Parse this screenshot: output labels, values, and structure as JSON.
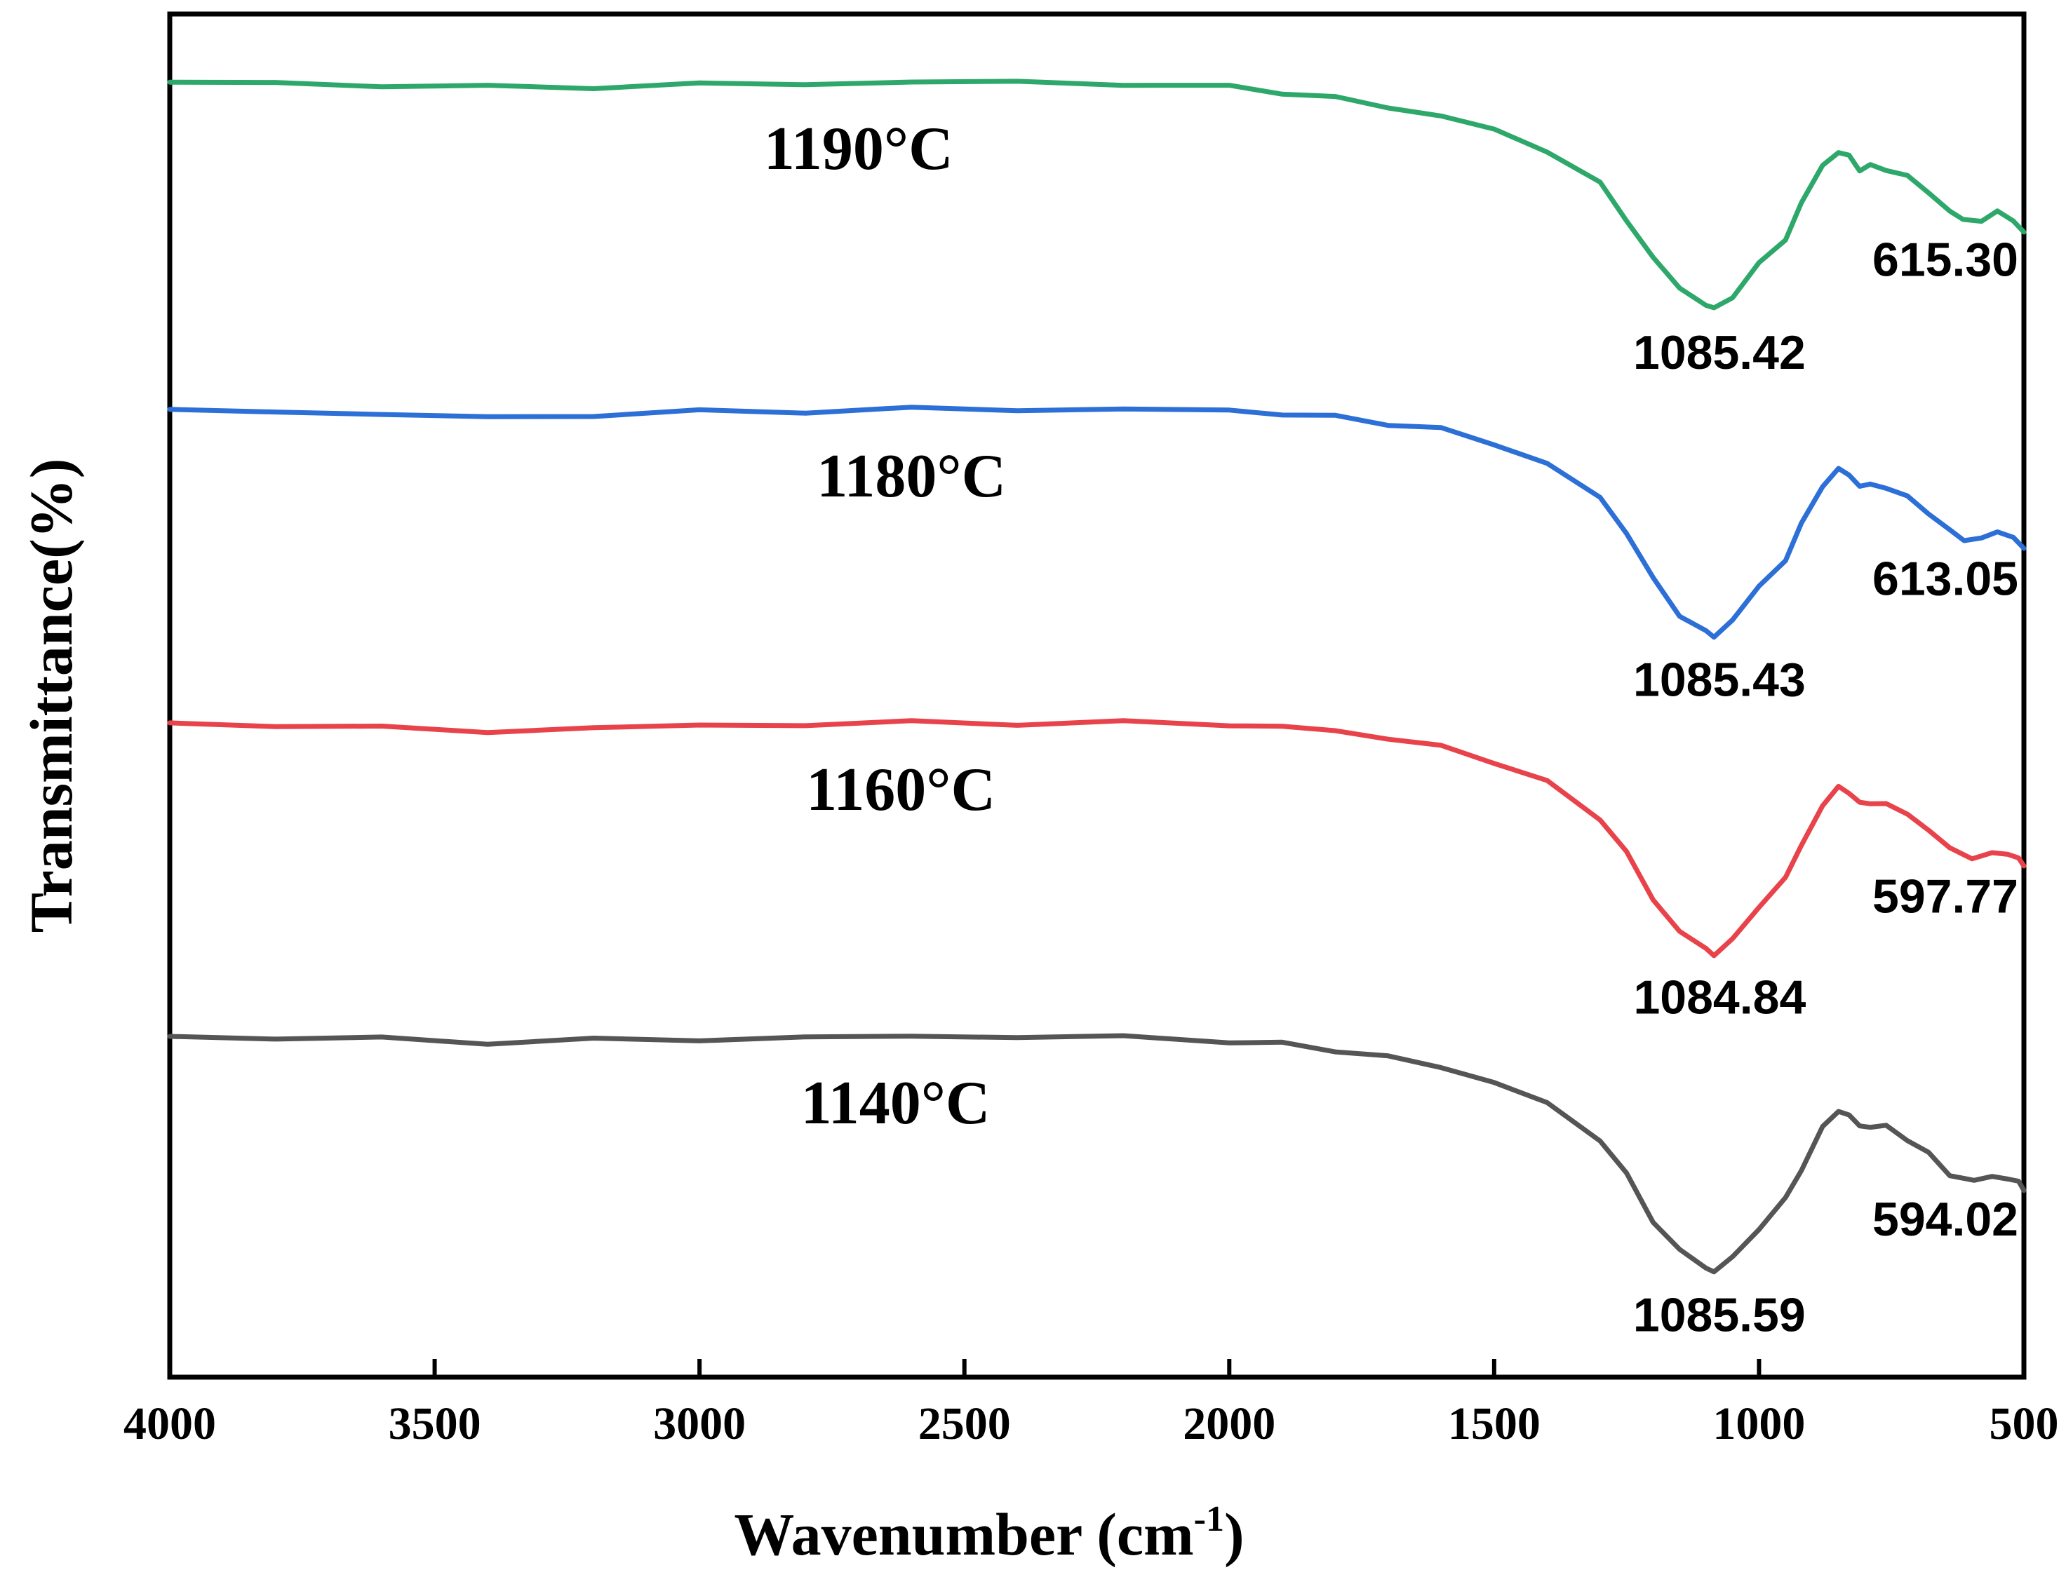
{
  "chart_data": {
    "type": "line",
    "title": "",
    "xlabel": "Wavenumber (cm",
    "xlabel_sup": "-1",
    "xlabel_end": ")",
    "ylabel": "Transmittance(%)",
    "xlim": [
      4000,
      500
    ],
    "x_reversed": true,
    "x_ticks": [
      4000,
      3500,
      3000,
      2500,
      2000,
      1500,
      1000,
      500
    ],
    "y_ticks_shown": false,
    "ylim": [
      0,
      100
    ],
    "series": [
      {
        "name": "1190°C",
        "color": "#2ea86a",
        "label": "1190°C",
        "label_wavenumber": 2700,
        "baseline": 95,
        "peaks": [
          {
            "wavenumber": 1085.42,
            "label": "1085.42"
          },
          {
            "wavenumber": 615.3,
            "label": "615.30"
          }
        ],
        "points": [
          [
            4000,
            95.0
          ],
          [
            3800,
            94.9
          ],
          [
            3600,
            94.8
          ],
          [
            3400,
            94.6
          ],
          [
            3200,
            94.7
          ],
          [
            3000,
            94.8
          ],
          [
            2800,
            94.9
          ],
          [
            2600,
            95.0
          ],
          [
            2400,
            95.0
          ],
          [
            2200,
            94.9
          ],
          [
            2000,
            94.6
          ],
          [
            1900,
            94.3
          ],
          [
            1800,
            93.8
          ],
          [
            1700,
            93.2
          ],
          [
            1600,
            92.5
          ],
          [
            1500,
            91.5
          ],
          [
            1400,
            90.0
          ],
          [
            1300,
            87.5
          ],
          [
            1250,
            85.0
          ],
          [
            1200,
            82.0
          ],
          [
            1150,
            80.0
          ],
          [
            1100,
            78.6
          ],
          [
            1085,
            78.4
          ],
          [
            1050,
            79.3
          ],
          [
            1000,
            81.6
          ],
          [
            950,
            83.6
          ],
          [
            920,
            86.0
          ],
          [
            880,
            89.0
          ],
          [
            850,
            89.8
          ],
          [
            830,
            89.6
          ],
          [
            810,
            88.6
          ],
          [
            790,
            88.8
          ],
          [
            760,
            88.7
          ],
          [
            720,
            88.0
          ],
          [
            680,
            87.0
          ],
          [
            640,
            85.5
          ],
          [
            615,
            84.9
          ],
          [
            580,
            84.9
          ],
          [
            550,
            85.4
          ],
          [
            520,
            85.0
          ],
          [
            500,
            84.0
          ]
        ]
      },
      {
        "name": "1180°C",
        "color": "#2c6fd6",
        "label": "1180°C",
        "label_wavenumber": 2600,
        "baseline": 71,
        "peaks": [
          {
            "wavenumber": 1085.43,
            "label": "1085.43"
          },
          {
            "wavenumber": 613.05,
            "label": "613.05"
          }
        ],
        "points": [
          [
            4000,
            71.0
          ],
          [
            3800,
            70.9
          ],
          [
            3600,
            70.6
          ],
          [
            3400,
            70.4
          ],
          [
            3200,
            70.6
          ],
          [
            3000,
            70.8
          ],
          [
            2800,
            70.9
          ],
          [
            2600,
            71.0
          ],
          [
            2400,
            71.0
          ],
          [
            2200,
            71.0
          ],
          [
            2000,
            70.9
          ],
          [
            1900,
            70.7
          ],
          [
            1800,
            70.4
          ],
          [
            1700,
            70.0
          ],
          [
            1600,
            69.5
          ],
          [
            1500,
            68.5
          ],
          [
            1400,
            67.0
          ],
          [
            1300,
            64.5
          ],
          [
            1250,
            62.0
          ],
          [
            1200,
            58.5
          ],
          [
            1150,
            56.0
          ],
          [
            1100,
            54.6
          ],
          [
            1085,
            54.4
          ],
          [
            1050,
            55.5
          ],
          [
            1000,
            58.0
          ],
          [
            950,
            60.0
          ],
          [
            920,
            62.5
          ],
          [
            880,
            65.5
          ],
          [
            850,
            66.5
          ],
          [
            830,
            66.3
          ],
          [
            810,
            65.3
          ],
          [
            790,
            65.5
          ],
          [
            760,
            65.3
          ],
          [
            720,
            64.5
          ],
          [
            680,
            63.5
          ],
          [
            640,
            62.0
          ],
          [
            613,
            61.5
          ],
          [
            580,
            61.5
          ],
          [
            550,
            62.0
          ],
          [
            520,
            61.7
          ],
          [
            500,
            60.8
          ]
        ]
      },
      {
        "name": "1160°C",
        "color": "#e8434a",
        "label": "1160°C",
        "label_wavenumber": 2620,
        "baseline": 48,
        "peaks": [
          {
            "wavenumber": 1084.84,
            "label": "1084.84"
          },
          {
            "wavenumber": 597.77,
            "label": "597.77"
          }
        ],
        "points": [
          [
            4000,
            48.0
          ],
          [
            3800,
            47.9
          ],
          [
            3600,
            47.6
          ],
          [
            3400,
            47.4
          ],
          [
            3200,
            47.6
          ],
          [
            3000,
            47.8
          ],
          [
            2800,
            47.9
          ],
          [
            2600,
            48.0
          ],
          [
            2400,
            48.0
          ],
          [
            2200,
            48.0
          ],
          [
            2000,
            47.9
          ],
          [
            1900,
            47.7
          ],
          [
            1800,
            47.4
          ],
          [
            1700,
            46.9
          ],
          [
            1600,
            46.2
          ],
          [
            1500,
            45.2
          ],
          [
            1400,
            43.6
          ],
          [
            1300,
            41.0
          ],
          [
            1250,
            38.5
          ],
          [
            1200,
            35.0
          ],
          [
            1150,
            32.8
          ],
          [
            1100,
            31.3
          ],
          [
            1085,
            31.1
          ],
          [
            1050,
            32.0
          ],
          [
            1000,
            34.6
          ],
          [
            950,
            36.6
          ],
          [
            920,
            39.0
          ],
          [
            880,
            42.0
          ],
          [
            850,
            43.2
          ],
          [
            830,
            43.0
          ],
          [
            810,
            42.0
          ],
          [
            790,
            42.2
          ],
          [
            760,
            42.0
          ],
          [
            720,
            41.3
          ],
          [
            680,
            40.2
          ],
          [
            640,
            38.7
          ],
          [
            598,
            38.2
          ],
          [
            560,
            38.3
          ],
          [
            530,
            38.5
          ],
          [
            510,
            38.0
          ],
          [
            500,
            37.5
          ]
        ]
      },
      {
        "name": "1140°C",
        "color": "#555555",
        "label": "1140°C",
        "label_wavenumber": 2630,
        "baseline": 25,
        "peaks": [
          {
            "wavenumber": 1085.59,
            "label": "1085.59"
          },
          {
            "wavenumber": 594.02,
            "label": "594.02"
          }
        ],
        "points": [
          [
            4000,
            25.0
          ],
          [
            3800,
            24.9
          ],
          [
            3600,
            24.8
          ],
          [
            3400,
            24.6
          ],
          [
            3200,
            24.7
          ],
          [
            3000,
            24.8
          ],
          [
            2800,
            24.9
          ],
          [
            2600,
            25.0
          ],
          [
            2400,
            25.0
          ],
          [
            2200,
            24.9
          ],
          [
            2000,
            24.7
          ],
          [
            1900,
            24.4
          ],
          [
            1800,
            24.0
          ],
          [
            1700,
            23.5
          ],
          [
            1600,
            22.7
          ],
          [
            1500,
            21.7
          ],
          [
            1400,
            20.0
          ],
          [
            1300,
            17.5
          ],
          [
            1250,
            14.8
          ],
          [
            1200,
            11.5
          ],
          [
            1150,
            9.3
          ],
          [
            1100,
            8.0
          ],
          [
            1085,
            7.8
          ],
          [
            1050,
            8.7
          ],
          [
            1000,
            11.0
          ],
          [
            950,
            13.0
          ],
          [
            920,
            15.3
          ],
          [
            880,
            18.3
          ],
          [
            850,
            19.5
          ],
          [
            830,
            19.3
          ],
          [
            810,
            18.3
          ],
          [
            790,
            18.5
          ],
          [
            760,
            18.3
          ],
          [
            720,
            17.5
          ],
          [
            680,
            16.4
          ],
          [
            640,
            14.8
          ],
          [
            594,
            14.5
          ],
          [
            560,
            14.6
          ],
          [
            530,
            14.7
          ],
          [
            510,
            14.2
          ],
          [
            500,
            13.7
          ]
        ]
      }
    ]
  }
}
